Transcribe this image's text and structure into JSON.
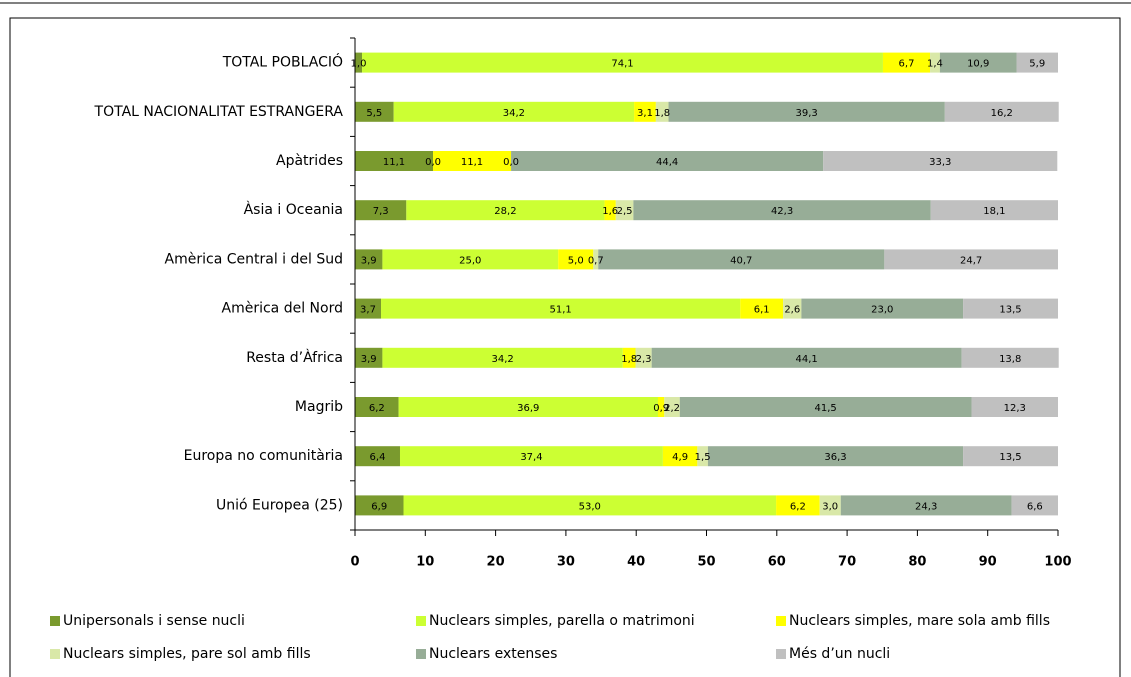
{
  "chart_data": {
    "type": "bar",
    "orientation": "horizontal",
    "stacked": true,
    "categories": [
      "TOTAL POBLACIÓ",
      "TOTAL NACIONALITAT ESTRANGERA",
      "Apàtrides",
      "Àsia i Oceania",
      "Amèrica Central i del Sud",
      "Amèrica del Nord",
      "Resta d’Àfrica",
      "Magrib",
      "Europa no comunitària",
      "Unió Europea (25)"
    ],
    "series": [
      {
        "name": "Unipersonals i sense nucli",
        "color": "#7a9a2e",
        "values": [
          1.0,
          5.5,
          11.1,
          7.3,
          3.9,
          3.7,
          3.9,
          6.2,
          6.4,
          6.9
        ],
        "value_labels": [
          "1,0",
          "5,5",
          "11,1",
          "7,3",
          "3,9",
          "3,7",
          "3,9",
          "6,2",
          "6,4",
          "6,9"
        ]
      },
      {
        "name": "Nuclears simples, parella o matrimoni",
        "color": "#ccff33",
        "values": [
          74.1,
          34.2,
          0.0,
          28.2,
          25.0,
          51.1,
          34.2,
          36.9,
          37.4,
          53.0
        ],
        "value_labels": [
          "74,1",
          "34,2",
          "0,0",
          "28,2",
          "25,0",
          "51,1",
          "34,2",
          "36,9",
          "37,4",
          "53,0"
        ]
      },
      {
        "name": "Nuclears simples, mare sola amb fills",
        "color": "#ffff00",
        "values": [
          6.7,
          3.1,
          11.1,
          1.6,
          5.0,
          6.1,
          1.8,
          0.9,
          4.9,
          6.2
        ],
        "value_labels": [
          "6,7",
          "3,1",
          "11,1",
          "1,6",
          "5,0",
          "6,1",
          "1,8",
          "0,9",
          "4,9",
          "6,2"
        ]
      },
      {
        "name": "Nuclears simples, pare sol amb fills",
        "color": "#d9e8a8",
        "values": [
          1.4,
          1.8,
          0.0,
          2.5,
          0.7,
          2.6,
          2.3,
          2.2,
          1.5,
          3.0
        ],
        "value_labels": [
          "1,4",
          "1,8",
          "0,0",
          "2,5",
          "0,7",
          "2,6",
          "2,3",
          "2,2",
          "1,5",
          "3,0"
        ]
      },
      {
        "name": "Nuclears extenses",
        "color": "#97ad97",
        "values": [
          10.9,
          39.3,
          44.4,
          42.3,
          40.7,
          23.0,
          44.1,
          41.5,
          36.3,
          24.3
        ],
        "value_labels": [
          "10,9",
          "39,3",
          "44,4",
          "42,3",
          "40,7",
          "23,0",
          "44,1",
          "41,5",
          "36,3",
          "24,3"
        ]
      },
      {
        "name": "Més d’un nucli",
        "color": "#c0c0c0",
        "values": [
          5.9,
          16.2,
          33.3,
          18.1,
          24.7,
          13.5,
          13.8,
          12.3,
          13.5,
          6.6
        ],
        "value_labels": [
          "5,9",
          "16,2",
          "33,3",
          "18,1",
          "24,7",
          "13,5",
          "13,8",
          "12,3",
          "13,5",
          "6,6"
        ]
      }
    ],
    "xlim": [
      0,
      100
    ],
    "xticks": [
      0,
      10,
      20,
      30,
      40,
      50,
      60,
      70,
      80,
      90,
      100
    ]
  }
}
